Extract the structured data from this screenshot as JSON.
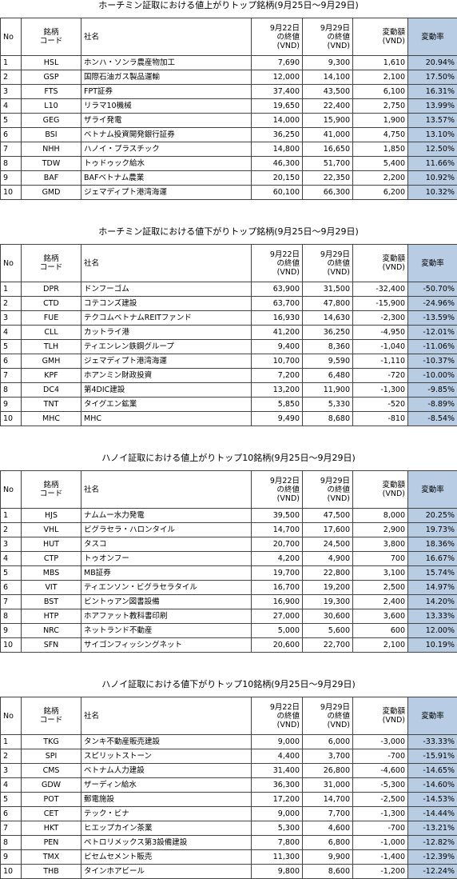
{
  "tables": [
    {
      "title": "ホーチミン証取における値上がりトップ銘柄(9月25日～9月29日)",
      "header": [
        "No",
        "銘柄\nコード",
        "社名",
        "9月22日\nの終値\n(VND)",
        "9月29日\nの終値\n(VND)",
        "変動額\n(VND)",
        "変動率"
      ],
      "rows": [
        [
          "1",
          "HSL",
          "ホンハ・ソンラ農産物加工",
          "7,690",
          "9,300",
          "1,610",
          "20.94%"
        ],
        [
          "2",
          "GSP",
          "国際石油ガス製品運輸",
          "12,000",
          "14,100",
          "2,100",
          "17.50%"
        ],
        [
          "3",
          "FTS",
          "FPT証券",
          "37,400",
          "43,500",
          "6,100",
          "16.31%"
        ],
        [
          "4",
          "L10",
          "リラマ10機械",
          "19,650",
          "22,400",
          "2,750",
          "13.99%"
        ],
        [
          "5",
          "GEG",
          "ザライ発電",
          "14,000",
          "15,900",
          "1,900",
          "13.57%"
        ],
        [
          "6",
          "BSI",
          "ベトナム投資開発銀行証券",
          "36,250",
          "41,000",
          "4,750",
          "13.10%"
        ],
        [
          "7",
          "NHH",
          "ハノイ・プラスチック",
          "14,800",
          "16,650",
          "1,850",
          "12.50%"
        ],
        [
          "8",
          "TDW",
          "トゥドゥック給水",
          "46,300",
          "51,700",
          "5,400",
          "11.66%"
        ],
        [
          "9",
          "BAF",
          "BAFベトナム農業",
          "20,150",
          "22,350",
          "2,200",
          "10.92%"
        ],
        [
          "10",
          "GMD",
          "ジェマディプト港湾海運",
          "60,100",
          "66,300",
          "6,200",
          "10.32%"
        ]
      ]
    },
    {
      "title": "ホーチミン証取における値下がりトップ銘柄(9月25日～9月29日)",
      "header": [
        "No",
        "銘柄\nコード",
        "社名",
        "9月22日\nの終値\n(VND)",
        "9月29日\nの終値\n(VND)",
        "変動額\n(VND)",
        "変動率"
      ],
      "rows": [
        [
          "1",
          "DPR",
          "ドンフーゴム",
          "63,900",
          "31,500",
          "-32,400",
          "-50.70%"
        ],
        [
          "2",
          "CTD",
          "コテコンズ建設",
          "63,700",
          "47,800",
          "-15,900",
          "-24.96%"
        ],
        [
          "3",
          "FUE",
          "テクコムベトナムREITファンド",
          "16,930",
          "14,630",
          "-2,300",
          "-13.59%"
        ],
        [
          "4",
          "CLL",
          "カットライ港",
          "41,200",
          "36,250",
          "-4,950",
          "-12.01%"
        ],
        [
          "5",
          "TLH",
          "ティエンレン鉄鋼グループ",
          "9,400",
          "8,360",
          "-1,040",
          "-11.06%"
        ],
        [
          "6",
          "GMH",
          "ジェマディプト港湾海運",
          "10,700",
          "9,590",
          "-1,110",
          "-10.37%"
        ],
        [
          "7",
          "KPF",
          "ホアンミン財政投資",
          "7,200",
          "6,480",
          "-720",
          "-10.00%"
        ],
        [
          "8",
          "DC4",
          "第4DIC建設",
          "13,200",
          "11,900",
          "-1,300",
          "-9.85%"
        ],
        [
          "9",
          "TNT",
          "タイグエン鉱業",
          "5,850",
          "5,330",
          "-520",
          "-8.89%"
        ],
        [
          "10",
          "MHC",
          "MHC",
          "9,490",
          "8,680",
          "-810",
          "-8.54%"
        ]
      ]
    },
    {
      "title": "ハノイ証取における値上がりトップ10銘柄(9月25日～9月29日)",
      "header": [
        "No",
        "銘柄\nコード",
        "社名",
        "9月22日\nの終値\n(VND)",
        "9月29日\nの終値\n(VND)",
        "変動額\n(VND)",
        "変動率"
      ],
      "rows": [
        [
          "1",
          "HJS",
          "ナムムー水力発電",
          "39,500",
          "47,500",
          "8,000",
          "20.25%"
        ],
        [
          "2",
          "VHL",
          "ビグラセラ・ハロンタイル",
          "14,700",
          "17,600",
          "2,900",
          "19.73%"
        ],
        [
          "3",
          "HUT",
          "タスコ",
          "20,700",
          "24,500",
          "3,800",
          "18.36%"
        ],
        [
          "4",
          "CTP",
          "トゥオンフー",
          "4,200",
          "4,900",
          "700",
          "16.67%"
        ],
        [
          "5",
          "MBS",
          "MB証券",
          "19,700",
          "22,800",
          "3,100",
          "15.74%"
        ],
        [
          "6",
          "VIT",
          "ティエンソン・ビグラセラタイル",
          "16,700",
          "19,200",
          "2,500",
          "14.97%"
        ],
        [
          "7",
          "BST",
          "ビントゥアン図書設備",
          "16,900",
          "19,300",
          "2,400",
          "14.20%"
        ],
        [
          "8",
          "HTP",
          "ホアファット教科書印刷",
          "27,000",
          "30,600",
          "3,600",
          "13.33%"
        ],
        [
          "9",
          "NRC",
          "ネットランド不動産",
          "5,000",
          "5,600",
          "600",
          "12.00%"
        ],
        [
          "10",
          "SFN",
          "サイゴンフィッシングネット",
          "20,600",
          "22,700",
          "2,100",
          "10.19%"
        ]
      ]
    },
    {
      "title": "ハノイ証取における値下がりトップ10銘柄(9月25日～9月29日)",
      "header": [
        "No",
        "銘柄\nコード",
        "社名",
        "9月22日\nの終値\n(VND)",
        "9月29日\nの終値\n(VND)",
        "変動額\n(VND)",
        "変動率"
      ],
      "rows": [
        [
          "1",
          "TKG",
          "タンキ不動産販売建設",
          "9,000",
          "6,000",
          "-3,000",
          "-33.33%"
        ],
        [
          "2",
          "SPI",
          "スピリットストーン",
          "4,400",
          "3,700",
          "-700",
          "-15.91%"
        ],
        [
          "3",
          "CMS",
          "ベトナム人力建設",
          "31,400",
          "26,800",
          "-4,600",
          "-14.65%"
        ],
        [
          "4",
          "GDW",
          "ザーディン給水",
          "36,300",
          "31,000",
          "-5,300",
          "-14.60%"
        ],
        [
          "5",
          "POT",
          "郵電施設",
          "17,200",
          "14,700",
          "-2,500",
          "-14.53%"
        ],
        [
          "6",
          "CET",
          "テック・ビナ",
          "9,000",
          "7,700",
          "-1,300",
          "-14.44%"
        ],
        [
          "7",
          "HKT",
          "ヒエップカイン茶業",
          "5,300",
          "4,600",
          "-700",
          "-13.21%"
        ],
        [
          "8",
          "PEN",
          "ペトロリメックス第3設備建設",
          "7,800",
          "6,800",
          "-1,000",
          "-12.82%"
        ],
        [
          "9",
          "TMX",
          "ビセムセメント販売",
          "11,300",
          "9,900",
          "-1,400",
          "-12.39%"
        ],
        [
          "10",
          "THB",
          "タインホアビール",
          "9,800",
          "8,600",
          "-1,200",
          "-12.24%"
        ]
      ]
    }
  ]
}
